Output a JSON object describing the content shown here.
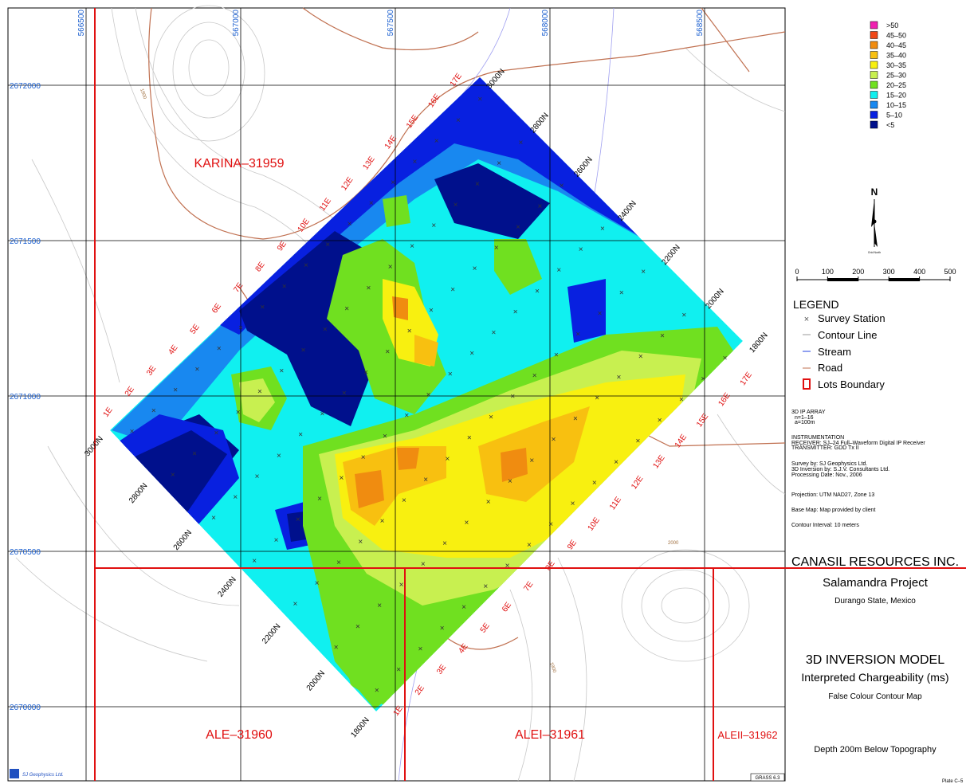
{
  "grid": {
    "eastings": [
      566500,
      567000,
      567500,
      568000,
      568500
    ],
    "northings": [
      2672000,
      2671500,
      2671000,
      2670500,
      2670000
    ]
  },
  "map_labels": {
    "lots": [
      "KARINA–31959",
      "ALE–31960",
      "ALEI–31961",
      "ALEII–31962"
    ],
    "contours": [
      "1900",
      "2000",
      "1900"
    ],
    "line_labels_nw": [
      "1E",
      "2E",
      "3E",
      "4E",
      "5E",
      "6E",
      "7E",
      "8E",
      "9E",
      "10E",
      "11E",
      "12E",
      "13E",
      "14E",
      "15E",
      "16E",
      "17E"
    ],
    "line_labels_se": [
      "1E",
      "2E",
      "3E",
      "4E",
      "5E",
      "6E",
      "7E",
      "8E",
      "9E",
      "10E",
      "11E",
      "12E",
      "13E",
      "14E",
      "15E",
      "16E",
      "17E"
    ],
    "station_labels_sw": [
      "3000N",
      "2800N",
      "2600N",
      "2400N",
      "2200N",
      "2000N",
      "1800N"
    ],
    "station_labels_ne": [
      "3000N",
      "2800N",
      "2600N",
      "2400N",
      "2200N",
      "2000N",
      "1800N"
    ],
    "logo": "SJ Geophysics Ltd.",
    "software": "GRASS 6.3"
  },
  "color_scale": {
    "classes": [
      {
        "label": ">50",
        "color": "#f020b0"
      },
      {
        "label": "45–50",
        "color": "#f04818"
      },
      {
        "label": "40–45",
        "color": "#f08c10"
      },
      {
        "label": "35–40",
        "color": "#f8c010"
      },
      {
        "label": "30–35",
        "color": "#f8f010"
      },
      {
        "label": "25–30",
        "color": "#c8f050"
      },
      {
        "label": "20–25",
        "color": "#70e020"
      },
      {
        "label": "15–20",
        "color": "#10f0f0"
      },
      {
        "label": "10–15",
        "color": "#1888f0"
      },
      {
        "label": "5–10",
        "color": "#0820e0"
      },
      {
        "label": "<5",
        "color": "#00108c"
      }
    ]
  },
  "north_arrow": {
    "label": "N",
    "caption": "Grid North"
  },
  "scale_bar": {
    "ticks": [
      0,
      100,
      200,
      300,
      400,
      500
    ]
  },
  "legend": {
    "title": "LEGEND",
    "items": [
      "Survey Station",
      "Contour Line",
      "Stream",
      "Road",
      "Lots Boundary"
    ]
  },
  "notes": [
    "3D IP ARRAY",
    "n=1–16",
    "a=100m",
    "INSTRUMENTATION",
    "RECEIVER: SJ–24 Full–Waveform Digital IP Receiver",
    "TRANSMITTER: GDD Tx II",
    "Survey by: SJ Geophysics Ltd.",
    "3D Inversion by: S.J.V. Consultants Ltd.",
    "Processing Date: Nov., 2006",
    "Projection: UTM NAD27, Zone 13",
    "Base Map: Map provided by client",
    "Contour Interval: 10 meters"
  ],
  "title_block": {
    "company": "CANASIL RESOURCES INC.",
    "project": "Salamandra Project",
    "location": "Durango State, Mexico",
    "model": "3D INVERSION MODEL",
    "parameter": "Interpreted Chargeability (ms)",
    "map_type": "False Colour Contour Map",
    "depth": "Depth 200m Below Topography",
    "plate": "Plate C–5"
  }
}
